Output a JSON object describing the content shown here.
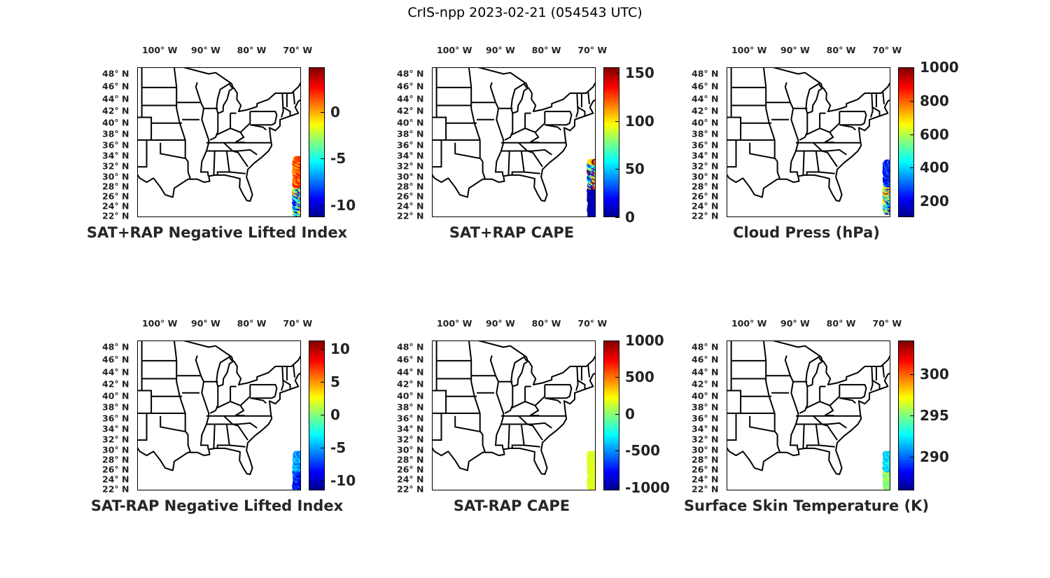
{
  "title": "CrIS-npp 2023-02-21 (054543 UTC)",
  "colors": {
    "outline": "#000000",
    "text": "#262626"
  },
  "chart_data": [
    {
      "type": "scatter",
      "title": "SAT+RAP Negative Lifted Index",
      "colorbar_ticks": [
        "0",
        "-5",
        "-10"
      ],
      "colorbar_tick_values": [
        0,
        -5,
        -10
      ],
      "clim": [
        -11.3,
        4.8
      ],
      "swath": {
        "lon": [
          70.6,
          68.9
        ],
        "lat": [
          22,
          33.5
        ],
        "north_value_range": [
          0,
          3
        ],
        "south_value_range": [
          -11,
          1
        ]
      }
    },
    {
      "type": "scatter",
      "title": "SAT+RAP CAPE",
      "colorbar_ticks": [
        "150",
        "100",
        "50",
        "0"
      ],
      "colorbar_tick_values": [
        150,
        100,
        50,
        0
      ],
      "clim": [
        0,
        156
      ],
      "swath": {
        "lon": [
          70.6,
          68.9
        ],
        "lat": [
          22,
          33
        ],
        "north_value_range": [
          5,
          156
        ],
        "south_value_range": [
          0,
          15
        ]
      }
    },
    {
      "type": "scatter",
      "title": "Cloud Press (hPa)",
      "colorbar_ticks": [
        "1000",
        "800",
        "600",
        "400",
        "200"
      ],
      "colorbar_tick_values": [
        1000,
        800,
        600,
        400,
        200
      ],
      "clim": [
        105,
        1000
      ],
      "swath": {
        "lon": [
          70.4,
          68.9
        ],
        "lat": [
          23,
          33
        ],
        "north_value_range": [
          150,
          350
        ],
        "south_value_range": [
          150,
          850
        ]
      }
    },
    {
      "type": "scatter",
      "title": "SAT-RAP Negative Lifted Index",
      "colorbar_ticks": [
        "10",
        "5",
        "0",
        "-5",
        "-10"
      ],
      "colorbar_tick_values": [
        10,
        5,
        0,
        -5,
        -10
      ],
      "clim": [
        -11.5,
        11.3
      ],
      "swath": {
        "lon": [
          70.6,
          68.9
        ],
        "lat": [
          22,
          29.5
        ],
        "north_value_range": [
          -7,
          -3
        ],
        "south_value_range": [
          -10,
          -6
        ]
      }
    },
    {
      "type": "scatter",
      "title": "SAT-RAP CAPE",
      "colorbar_ticks": [
        "1000",
        "500",
        "0",
        "-500",
        "-1000"
      ],
      "colorbar_tick_values": [
        1000,
        500,
        0,
        -500,
        -1000
      ],
      "clim": [
        -1040,
        1000
      ],
      "swath": {
        "lon": [
          70.6,
          68.9
        ],
        "lat": [
          22,
          29.5
        ],
        "north_value_range": [
          150,
          200
        ],
        "south_value_range": [
          150,
          200
        ]
      }
    },
    {
      "type": "scatter",
      "title": "Surface Skin Temperature (K)",
      "colorbar_ticks": [
        "300",
        "295",
        "290"
      ],
      "colorbar_tick_values": [
        300,
        295,
        290
      ],
      "clim": [
        286,
        304
      ],
      "swath": {
        "lon": [
          70.4,
          68.9
        ],
        "lat": [
          22,
          29.5
        ],
        "north_value_range": [
          291,
          294
        ],
        "south_value_range": [
          294,
          297
        ]
      }
    }
  ],
  "axes": {
    "lon_ticks": [
      "100° W",
      "90° W",
      "80° W",
      "70° W"
    ],
    "lon_values": [
      100,
      90,
      80,
      70
    ],
    "lat_ticks": [
      "48° N",
      "46° N",
      "44° N",
      "42° N",
      "40° N",
      "38° N",
      "36° N",
      "34° N",
      "32° N",
      "30° N",
      "28° N",
      "26° N",
      "24° N",
      "22° N"
    ],
    "lat_values": [
      48,
      46,
      44,
      42,
      40,
      38,
      36,
      34,
      32,
      30,
      28,
      26,
      24,
      22
    ]
  }
}
